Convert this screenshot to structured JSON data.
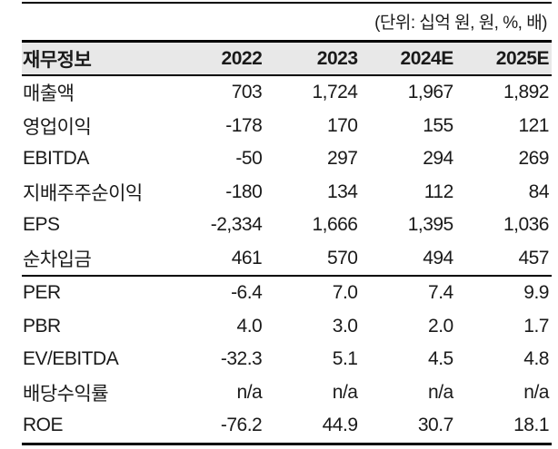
{
  "unit_note": "(단위: 십억 원, 원, %, 배)",
  "colors": {
    "background": "#ffffff",
    "text": "#1a1a1a",
    "header_background": "#e8e8e8",
    "rule": "#000000"
  },
  "chart_data": {
    "type": "table",
    "title": "재무정보",
    "columns": [
      "재무정보",
      "2022",
      "2023",
      "2024E",
      "2025E"
    ],
    "rows": [
      {
        "label": "매출액",
        "values": [
          "703",
          "1,724",
          "1,967",
          "1,892"
        ]
      },
      {
        "label": "영업이익",
        "values": [
          "-178",
          "170",
          "155",
          "121"
        ]
      },
      {
        "label": "EBITDA",
        "values": [
          "-50",
          "297",
          "294",
          "269"
        ]
      },
      {
        "label": "지배주주순이익",
        "values": [
          "-180",
          "134",
          "112",
          "84"
        ]
      },
      {
        "label": "EPS",
        "values": [
          "-2,334",
          "1,666",
          "1,395",
          "1,036"
        ]
      },
      {
        "label": "순차입금",
        "values": [
          "461",
          "570",
          "494",
          "457"
        ]
      },
      {
        "label": "PER",
        "values": [
          "-6.4",
          "7.0",
          "7.4",
          "9.9"
        ]
      },
      {
        "label": "PBR",
        "values": [
          "4.0",
          "3.0",
          "2.0",
          "1.7"
        ]
      },
      {
        "label": "EV/EBITDA",
        "values": [
          "-32.3",
          "5.1",
          "4.5",
          "4.8"
        ]
      },
      {
        "label": "배당수익률",
        "values": [
          "n/a",
          "n/a",
          "n/a",
          "n/a"
        ]
      },
      {
        "label": "ROE",
        "values": [
          "-76.2",
          "44.9",
          "30.7",
          "18.1"
        ]
      }
    ]
  }
}
